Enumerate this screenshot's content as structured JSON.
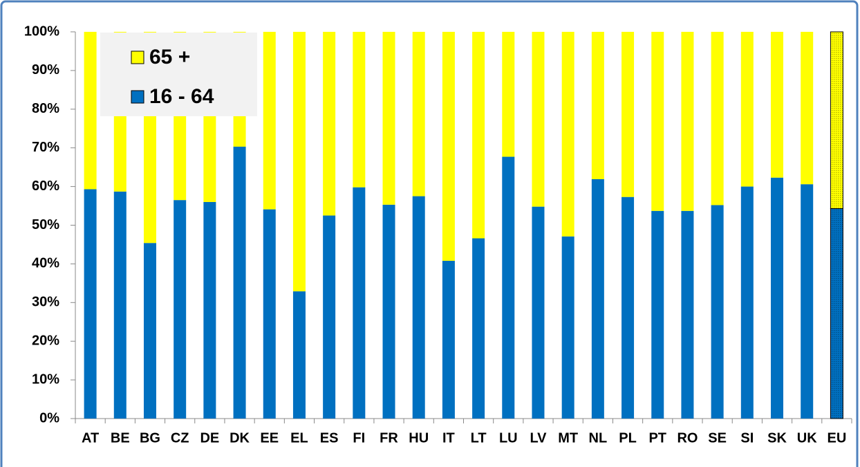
{
  "chart_data": {
    "type": "stacked_bar",
    "categories": [
      "AT",
      "BE",
      "BG",
      "CZ",
      "DE",
      "DK",
      "EE",
      "EL",
      "ES",
      "FI",
      "FR",
      "HU",
      "IT",
      "LT",
      "LU",
      "LV",
      "MT",
      "NL",
      "PL",
      "PT",
      "RO",
      "SE",
      "SI",
      "SK",
      "UK",
      "EU"
    ],
    "series": [
      {
        "name": "16 - 64",
        "color": "#0070c0",
        "values": [
          59.3,
          58.7,
          45.4,
          56.5,
          56.0,
          70.3,
          54.1,
          32.9,
          52.5,
          59.8,
          55.3,
          57.5,
          40.8,
          46.6,
          67.7,
          54.8,
          47.1,
          61.9,
          57.3,
          53.7,
          53.7,
          55.2,
          60.0,
          62.3,
          60.6,
          54.3
        ]
      },
      {
        "name": "65 +",
        "color": "#ffff00",
        "values": [
          40.7,
          41.3,
          54.6,
          43.5,
          44.0,
          29.7,
          45.9,
          67.1,
          47.5,
          40.2,
          44.7,
          42.5,
          59.2,
          53.4,
          32.3,
          45.2,
          52.9,
          38.1,
          42.7,
          46.3,
          46.3,
          44.8,
          40.0,
          37.7,
          39.4,
          45.7
        ]
      }
    ],
    "ylim": [
      0,
      100
    ],
    "yticks": [
      {
        "value": 0,
        "label": "0%"
      },
      {
        "value": 10,
        "label": "10%"
      },
      {
        "value": 20,
        "label": "20%"
      },
      {
        "value": 30,
        "label": "30%"
      },
      {
        "value": 40,
        "label": "40%"
      },
      {
        "value": 50,
        "label": "50%"
      },
      {
        "value": 60,
        "label": "60%"
      },
      {
        "value": 70,
        "label": "70%"
      },
      {
        "value": 80,
        "label": "80%"
      },
      {
        "value": 90,
        "label": "90%"
      },
      {
        "value": 100,
        "label": "100%"
      }
    ],
    "grid": false,
    "legend": "top-left"
  }
}
